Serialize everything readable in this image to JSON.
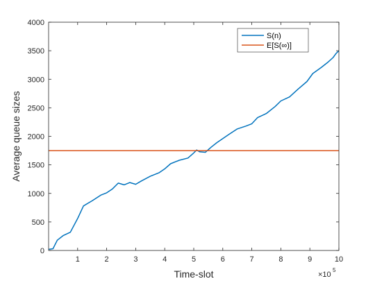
{
  "chart_data": {
    "type": "line",
    "xlabel": "Time-slot",
    "ylabel": "Average queue sizes",
    "xlim": [
      0,
      10
    ],
    "ylim": [
      0,
      4000
    ],
    "x_multiplier": {
      "base": "×10",
      "exponent": "5"
    },
    "xticks": [
      1,
      2,
      3,
      4,
      5,
      6,
      7,
      8,
      9,
      10
    ],
    "yticks": [
      0,
      500,
      1000,
      1500,
      2000,
      2500,
      3000,
      3500,
      4000
    ],
    "grid": false,
    "legend_position": "top-right",
    "series": [
      {
        "name": "S(n)",
        "color": "#0072BD",
        "x": [
          0,
          0.15,
          0.3,
          0.5,
          0.75,
          1.0,
          1.2,
          1.5,
          1.8,
          2.0,
          2.2,
          2.4,
          2.6,
          2.8,
          3.0,
          3.2,
          3.5,
          3.8,
          4.0,
          4.2,
          4.5,
          4.8,
          5.0,
          5.1,
          5.2,
          5.4,
          5.6,
          5.8,
          6.0,
          6.2,
          6.5,
          6.8,
          7.0,
          7.2,
          7.5,
          7.8,
          8.0,
          8.3,
          8.6,
          8.9,
          9.1,
          9.4,
          9.6,
          9.8,
          9.9,
          10.0
        ],
        "y": [
          20,
          30,
          180,
          260,
          320,
          560,
          780,
          870,
          970,
          1010,
          1080,
          1180,
          1150,
          1190,
          1160,
          1220,
          1300,
          1360,
          1430,
          1520,
          1580,
          1620,
          1710,
          1760,
          1730,
          1720,
          1810,
          1890,
          1960,
          2030,
          2130,
          2180,
          2220,
          2330,
          2400,
          2520,
          2620,
          2690,
          2830,
          2960,
          3100,
          3210,
          3290,
          3380,
          3450,
          3500
        ]
      },
      {
        "name": "E[S(∞)]",
        "color": "#D95319",
        "x": [
          0,
          10
        ],
        "y": [
          1750,
          1750
        ]
      }
    ]
  }
}
